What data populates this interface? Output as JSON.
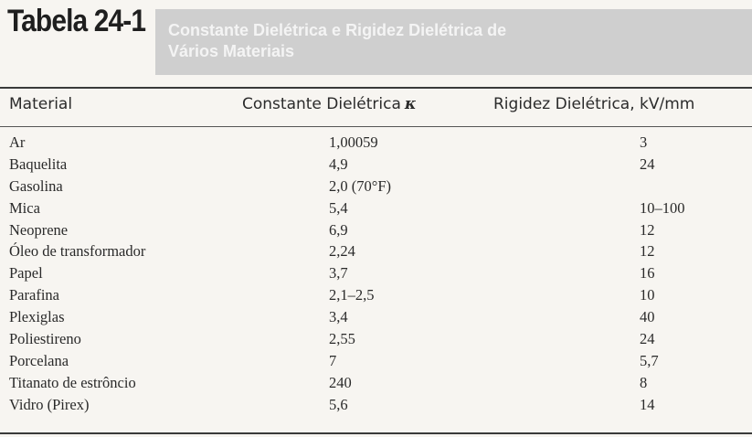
{
  "table": {
    "label": "Tabela 24-1",
    "title_line1": "Constante Dielétrica e Rigidez Dielétrica de",
    "title_line2": "Vários Materiais",
    "columns": {
      "material": "Material",
      "constant": "Constante Dielétrica",
      "constant_symbol": "κ",
      "strength": "Rigidez Dielétrica, kV/mm"
    },
    "rows": [
      {
        "material": "Ar",
        "constant": "1,00059",
        "strength": "3"
      },
      {
        "material": "Baquelita",
        "constant": "4,9",
        "strength": "24"
      },
      {
        "material": "Gasolina",
        "constant": "2,0 (70°F)",
        "strength": ""
      },
      {
        "material": "Mica",
        "constant": "5,4",
        "strength": "10–100"
      },
      {
        "material": "Neoprene",
        "constant": "6,9",
        "strength": "12"
      },
      {
        "material": "Óleo de transformador",
        "constant": "2,24",
        "strength": "12"
      },
      {
        "material": "Papel",
        "constant": "3,7",
        "strength": "16"
      },
      {
        "material": "Parafina",
        "constant": "2,1–2,5",
        "strength": "10"
      },
      {
        "material": "Plexiglas",
        "constant": "3,4",
        "strength": "40"
      },
      {
        "material": "Poliestireno",
        "constant": "2,55",
        "strength": "24"
      },
      {
        "material": "Porcelana",
        "constant": "7",
        "strength": "5,7"
      },
      {
        "material": "Titanato de estrôncio",
        "constant": "240",
        "strength": "8"
      },
      {
        "material": "Vidro (Pirex)",
        "constant": "5,6",
        "strength": "14"
      }
    ]
  }
}
